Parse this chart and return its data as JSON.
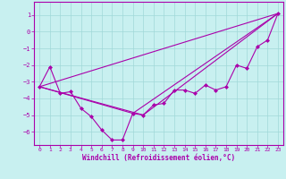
{
  "background_color": "#c8f0f0",
  "grid_color": "#a0d8d8",
  "line_color": "#aa00aa",
  "marker_color": "#aa00aa",
  "xlabel": "Windchill (Refroidissement éolien,°C)",
  "xlabel_color": "#aa00aa",
  "yticks": [
    1,
    0,
    -1,
    -2,
    -3,
    -4,
    -5,
    -6
  ],
  "xticks": [
    0,
    1,
    2,
    3,
    4,
    5,
    6,
    7,
    8,
    9,
    10,
    11,
    12,
    13,
    14,
    15,
    16,
    17,
    18,
    19,
    20,
    21,
    22,
    23
  ],
  "ylim": [
    -6.8,
    1.8
  ],
  "xlim": [
    -0.5,
    23.5
  ],
  "series1_x": [
    0,
    1,
    2,
    3,
    4,
    5,
    6,
    7,
    8,
    9,
    10,
    11,
    12,
    13,
    14,
    15,
    16,
    17,
    18,
    19,
    20,
    21,
    22,
    23
  ],
  "series1_y": [
    -3.3,
    -2.1,
    -3.7,
    -3.6,
    -4.6,
    -5.1,
    -5.9,
    -6.5,
    -6.5,
    -4.9,
    -5.0,
    -4.4,
    -4.3,
    -3.5,
    -3.5,
    -3.7,
    -3.2,
    -3.5,
    -3.3,
    -2.0,
    -2.2,
    -0.9,
    -0.5,
    1.1
  ],
  "series2_x": [
    0,
    23
  ],
  "series2_y": [
    -3.3,
    1.1
  ],
  "series3_x": [
    0,
    10,
    23
  ],
  "series3_y": [
    -3.3,
    -5.0,
    1.1
  ],
  "series4_x": [
    0,
    9,
    23
  ],
  "series4_y": [
    -3.3,
    -4.9,
    1.1
  ]
}
